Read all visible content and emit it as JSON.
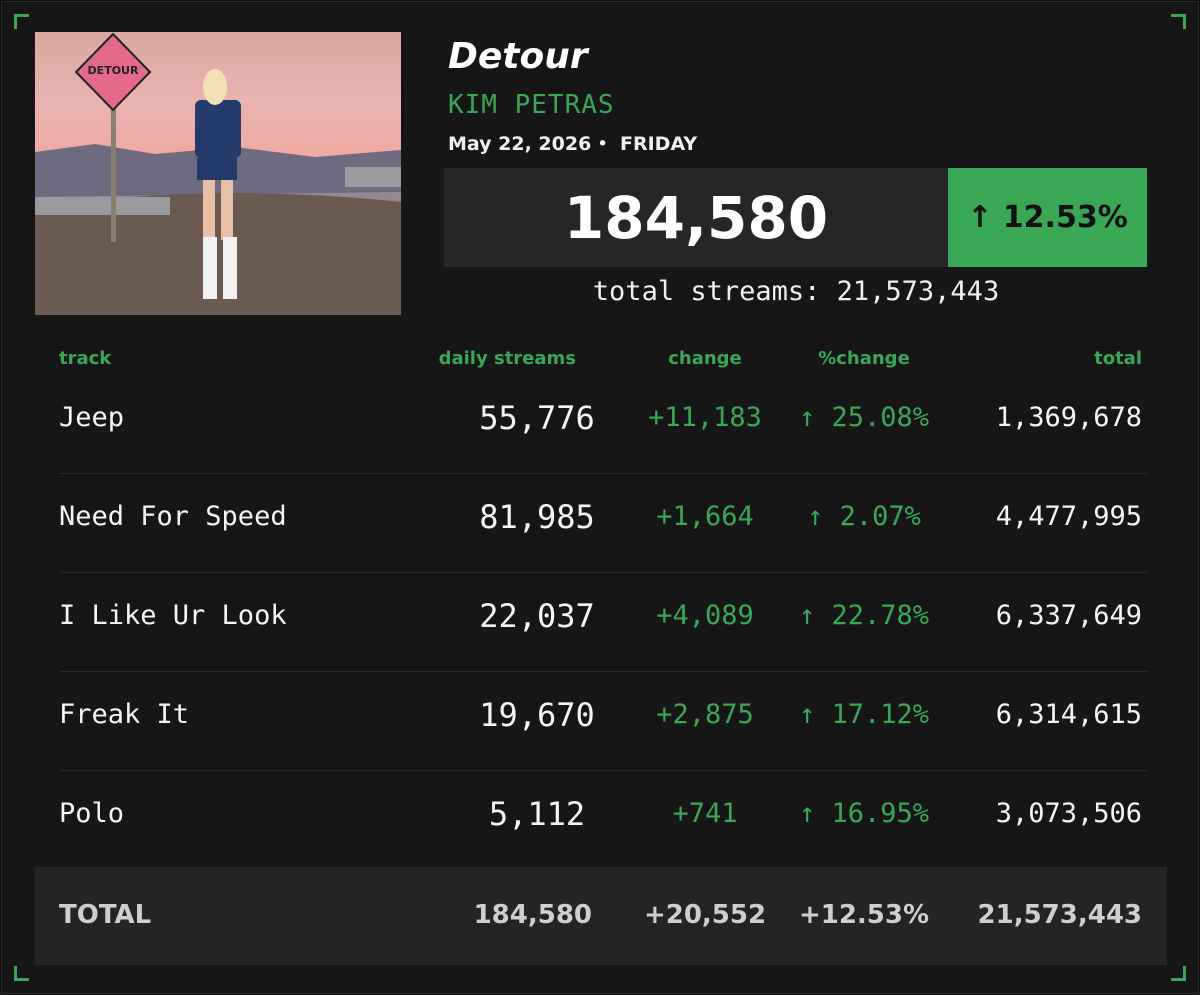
{
  "album": {
    "title": "Detour",
    "artist": "KIM PETRAS",
    "date": "May 22, 2026",
    "day": "FRIDAY",
    "cover_sign": "DETOUR"
  },
  "summary": {
    "daily_streams": "184,580",
    "change": "↑ 12.53%",
    "total_label": "total streams:",
    "total_value": "21,573,443"
  },
  "table": {
    "columns": [
      "track",
      "daily streams",
      "change",
      "%change",
      "total"
    ],
    "rows": [
      [
        "Jeep",
        "55,776",
        "+11,183",
        "↑ 25.08%",
        "1,369,678"
      ],
      [
        "Need For Speed",
        "81,985",
        "+1,664",
        "↑ 2.07%",
        "4,477,995"
      ],
      [
        "I Like Ur Look",
        "22,037",
        "+4,089",
        "↑ 22.78%",
        "6,337,649"
      ],
      [
        "Freak It",
        "19,670",
        "+2,875",
        "↑ 17.12%",
        "6,314,615"
      ],
      [
        "Polo",
        "5,112",
        "+741",
        "↑ 16.95%",
        "3,073,506"
      ]
    ],
    "total": [
      "TOTAL",
      "184,580",
      "+20,552",
      "+12.53%",
      "21,573,443"
    ]
  }
}
